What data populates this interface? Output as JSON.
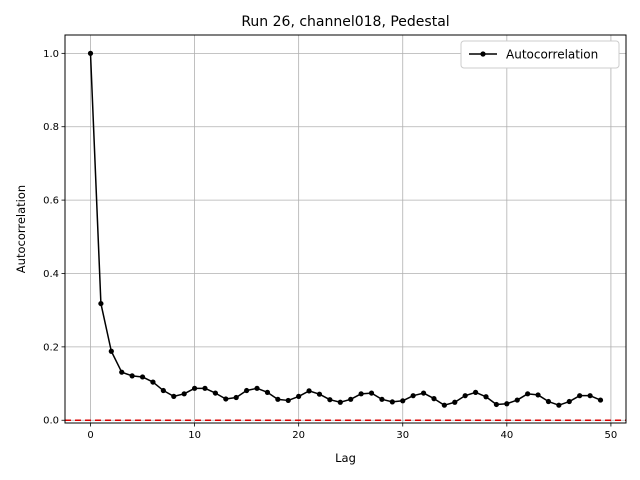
{
  "chart_data": {
    "type": "line",
    "title": "Run 26, channel018, Pedestal",
    "xlabel": "Lag",
    "ylabel": "Autocorrelation",
    "xlim": [
      -2.45,
      51.45
    ],
    "ylim": [
      -0.0075,
      1.05
    ],
    "xticks": [
      0,
      10,
      20,
      30,
      40,
      50
    ],
    "yticks": [
      0.0,
      0.2,
      0.4,
      0.6,
      0.8,
      1.0
    ],
    "xtick_labels": [
      "0",
      "10",
      "20",
      "30",
      "40",
      "50"
    ],
    "ytick_labels": [
      "0.0",
      "0.2",
      "0.4",
      "0.6",
      "0.8",
      "1.0"
    ],
    "grid": true,
    "legend_position": "top-right",
    "reference_line": {
      "y": 0.0,
      "color": "#dd0000",
      "style": "dashed"
    },
    "series": [
      {
        "name": "Autocorrelation",
        "color": "#000000",
        "marker": "circle",
        "x": [
          0,
          1,
          2,
          3,
          4,
          5,
          6,
          7,
          8,
          9,
          10,
          11,
          12,
          13,
          14,
          15,
          16,
          17,
          18,
          19,
          20,
          21,
          22,
          23,
          24,
          25,
          26,
          27,
          28,
          29,
          30,
          31,
          32,
          33,
          34,
          35,
          36,
          37,
          38,
          39,
          40,
          41,
          42,
          43,
          44,
          45,
          46,
          47,
          48,
          49
        ],
        "values": [
          1.0,
          0.318,
          0.188,
          0.131,
          0.121,
          0.118,
          0.104,
          0.081,
          0.065,
          0.072,
          0.087,
          0.087,
          0.074,
          0.058,
          0.062,
          0.081,
          0.087,
          0.076,
          0.057,
          0.054,
          0.065,
          0.08,
          0.071,
          0.056,
          0.049,
          0.057,
          0.072,
          0.074,
          0.057,
          0.05,
          0.053,
          0.067,
          0.074,
          0.059,
          0.041,
          0.049,
          0.067,
          0.076,
          0.064,
          0.043,
          0.045,
          0.055,
          0.072,
          0.069,
          0.051,
          0.041,
          0.051,
          0.067,
          0.067,
          0.055
        ]
      }
    ]
  }
}
